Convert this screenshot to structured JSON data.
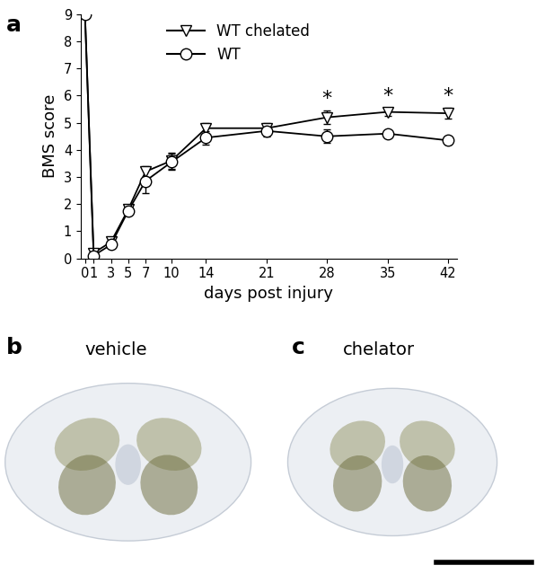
{
  "chart_data": {
    "type": "line",
    "x_label": "days post injury",
    "y_label": "BMS score",
    "x": [
      0,
      1,
      3,
      5,
      7,
      10,
      14,
      21,
      28,
      35,
      42
    ],
    "series": [
      {
        "name": "WT chelated",
        "color": "#000000",
        "marker": "triangle_down",
        "line_style": "solid",
        "values": [
          9,
          0.2,
          0.6,
          1.8,
          3.2,
          3.6,
          4.8,
          4.8,
          5.2,
          5.4,
          5.35
        ],
        "errors": [
          0,
          0.1,
          0.1,
          0.15,
          0.2,
          0.3,
          0.2,
          0.2,
          0.25,
          0.15,
          0.2
        ]
      },
      {
        "name": "WT",
        "color": "#000000",
        "marker": "circle",
        "line_style": "solid",
        "values": [
          9,
          0.1,
          0.5,
          1.75,
          2.85,
          3.55,
          4.45,
          4.7,
          4.5,
          4.6,
          4.35
        ],
        "errors": [
          0,
          0.1,
          0.1,
          0.15,
          0.45,
          0.3,
          0.25,
          0.2,
          0.25,
          0.1,
          0.15
        ]
      }
    ],
    "annotations": [
      {
        "x": 28,
        "label": "*"
      },
      {
        "x": 35,
        "label": "*"
      },
      {
        "x": 42,
        "label": "*"
      }
    ],
    "xlim": [
      -0.5,
      43
    ],
    "xticks": [
      0,
      1,
      3,
      5,
      7,
      10,
      14,
      21,
      28,
      35,
      42
    ],
    "ylim": [
      0,
      9
    ],
    "yticks": [
      0,
      1,
      2,
      3,
      4,
      5,
      6,
      7,
      8,
      9
    ],
    "legend": "upper center",
    "grid": false
  },
  "panel_label": "a",
  "images": [
    {
      "panel_label": "b",
      "title": "vehicle"
    },
    {
      "panel_label": "c",
      "title": "chelator"
    }
  ]
}
